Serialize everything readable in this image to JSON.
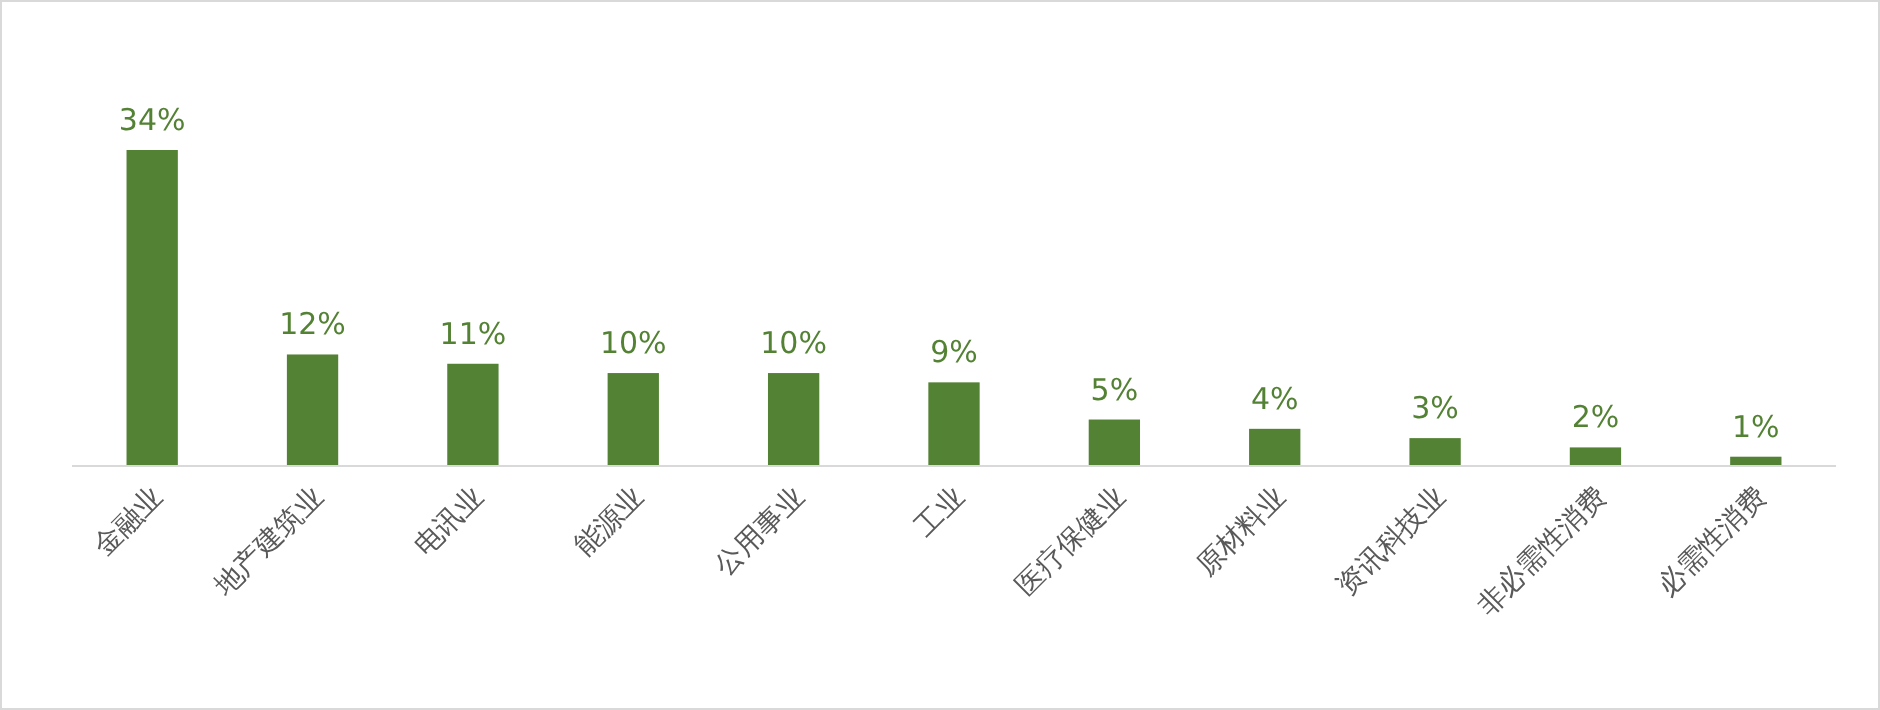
{
  "chart_data": {
    "type": "bar",
    "categories": [
      "金融业",
      "地产建筑业",
      "电讯业",
      "能源业",
      "公用事业",
      "工业",
      "医疗保健业",
      "原材料业",
      "资讯科技业",
      "非必需性消费",
      "必需性消费"
    ],
    "values": [
      34,
      12,
      11,
      10,
      10,
      9,
      5,
      4,
      3,
      2,
      1
    ],
    "value_labels": [
      "34%",
      "12%",
      "11%",
      "10%",
      "10%",
      "9%",
      "5%",
      "4%",
      "3%",
      "2%",
      "1%"
    ],
    "color": "#548235",
    "tick_labels": "x"
  }
}
